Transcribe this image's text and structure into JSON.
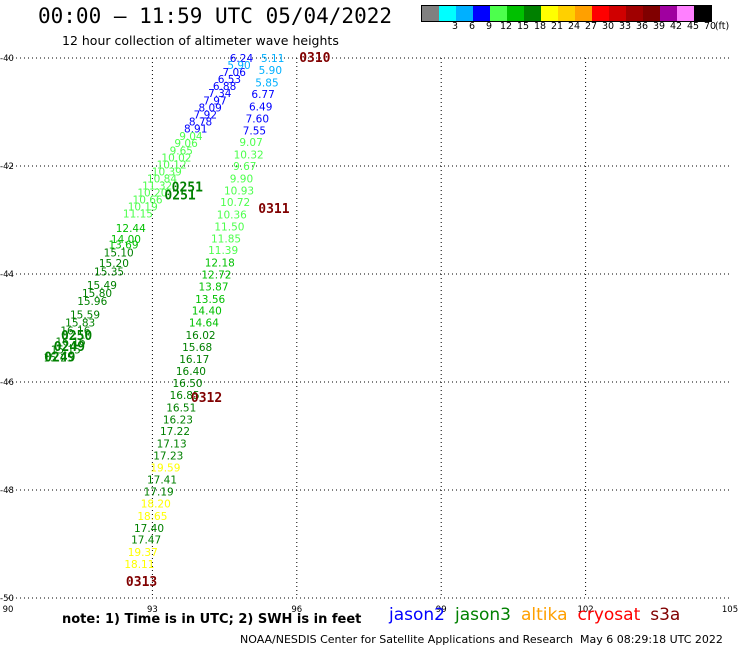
{
  "title": "00:00 – 11:59 UTC 05/04/2022",
  "subtitle": "12 hour collection of altimeter wave heights",
  "legend": {
    "unit": "(ft)",
    "bins": [
      {
        "label": "",
        "color": "#808080"
      },
      {
        "label": "3",
        "color": "#00ffff"
      },
      {
        "label": "6",
        "color": "#00b0ff"
      },
      {
        "label": "9",
        "color": "#0000ff"
      },
      {
        "label": "12",
        "color": "#4dff4d"
      },
      {
        "label": "15",
        "color": "#00c000"
      },
      {
        "label": "18",
        "color": "#008000"
      },
      {
        "label": "21",
        "color": "#ffff00"
      },
      {
        "label": "24",
        "color": "#ffd000"
      },
      {
        "label": "27",
        "color": "#ffa000"
      },
      {
        "label": "30",
        "color": "#ff0000"
      },
      {
        "label": "33",
        "color": "#d00000"
      },
      {
        "label": "36",
        "color": "#a00000"
      },
      {
        "label": "39",
        "color": "#800000"
      },
      {
        "label": "42",
        "color": "#a000a0"
      },
      {
        "label": "45",
        "color": "#ff80ff"
      },
      {
        "label": "70",
        "color": "#000000"
      }
    ]
  },
  "note": "note:  1) Time is in UTC;  2) SWH is in feet",
  "satellites": [
    {
      "name": "jason2",
      "color": "#0000ff"
    },
    {
      "name": "jason3",
      "color": "#008000"
    },
    {
      "name": "altika",
      "color": "#ffa000"
    },
    {
      "name": "cryosat",
      "color": "#ff0000"
    },
    {
      "name": "s3a",
      "color": "#800000"
    }
  ],
  "credit": "NOAA/NESDIS Center for Satellite Applications and Research",
  "generated": "May  6 08:29:18 UTC 2022",
  "chart_data": {
    "type": "scatter",
    "xlim": [
      90,
      105
    ],
    "ylim": [
      -50,
      -40
    ],
    "x_ticks": [
      "90",
      "93",
      "96",
      "99",
      "102",
      "105"
    ],
    "y_ticks": [
      "-40",
      "-42",
      "-44",
      "-46",
      "-48",
      "-50"
    ],
    "x_tick_values": [
      90,
      93,
      96,
      99,
      102,
      105
    ],
    "y_tick_values": [
      -40,
      -42,
      -44,
      -46,
      -48,
      -50
    ],
    "grid": "dotted",
    "pass_labels": [
      {
        "text": "0310",
        "lon": 96.05,
        "lat": -40.0
      },
      {
        "text": "0311",
        "lon": 95.2,
        "lat": -42.8
      },
      {
        "text": "0312",
        "lon": 93.8,
        "lat": -46.3
      },
      {
        "text": "0313",
        "lon": 92.45,
        "lat": -49.7
      },
      {
        "text": "0251",
        "lon": 93.4,
        "lat": -42.4
      },
      {
        "text": "0251",
        "lon": 93.25,
        "lat": -42.55
      },
      {
        "text": "0250",
        "lon": 91.1,
        "lat": -45.15
      },
      {
        "text": "0249",
        "lon": 90.95,
        "lat": -45.35
      },
      {
        "text": "0249",
        "lon": 90.75,
        "lat": -45.55
      }
    ],
    "points": [
      {
        "lon": 95.5,
        "lat": -40.0,
        "v": "5.11"
      },
      {
        "lon": 95.45,
        "lat": -40.22,
        "v": "5.90"
      },
      {
        "lon": 95.38,
        "lat": -40.45,
        "v": "5.85"
      },
      {
        "lon": 95.3,
        "lat": -40.67,
        "v": "6.77"
      },
      {
        "lon": 95.25,
        "lat": -40.9,
        "v": "6.49"
      },
      {
        "lon": 95.18,
        "lat": -41.12,
        "v": "7.60"
      },
      {
        "lon": 95.12,
        "lat": -41.34,
        "v": "7.55"
      },
      {
        "lon": 95.05,
        "lat": -41.56,
        "v": "9.07"
      },
      {
        "lon": 95.0,
        "lat": -41.79,
        "v": "10.32"
      },
      {
        "lon": 94.92,
        "lat": -42.0,
        "v": "9.67"
      },
      {
        "lon": 94.85,
        "lat": -42.23,
        "v": "9.90"
      },
      {
        "lon": 94.8,
        "lat": -42.45,
        "v": "10.93"
      },
      {
        "lon": 94.72,
        "lat": -42.67,
        "v": "10.72"
      },
      {
        "lon": 94.65,
        "lat": -42.9,
        "v": "10.36"
      },
      {
        "lon": 94.6,
        "lat": -43.12,
        "v": "11.50"
      },
      {
        "lon": 94.53,
        "lat": -43.34,
        "v": "11.85"
      },
      {
        "lon": 94.47,
        "lat": -43.56,
        "v": "11.39"
      },
      {
        "lon": 94.4,
        "lat": -43.79,
        "v": "12.18"
      },
      {
        "lon": 94.33,
        "lat": -44.01,
        "v": "12.72"
      },
      {
        "lon": 94.27,
        "lat": -44.23,
        "v": "13.87"
      },
      {
        "lon": 94.2,
        "lat": -44.46,
        "v": "13.56"
      },
      {
        "lon": 94.13,
        "lat": -44.68,
        "v": "14.40"
      },
      {
        "lon": 94.07,
        "lat": -44.9,
        "v": "14.64"
      },
      {
        "lon": 94.0,
        "lat": -45.13,
        "v": "16.02"
      },
      {
        "lon": 93.93,
        "lat": -45.35,
        "v": "15.68"
      },
      {
        "lon": 93.87,
        "lat": -45.57,
        "v": "16.17"
      },
      {
        "lon": 93.8,
        "lat": -45.8,
        "v": "16.40"
      },
      {
        "lon": 93.73,
        "lat": -46.02,
        "v": "16.50"
      },
      {
        "lon": 93.67,
        "lat": -46.24,
        "v": "16.85"
      },
      {
        "lon": 93.6,
        "lat": -46.47,
        "v": "16.51"
      },
      {
        "lon": 93.53,
        "lat": -46.69,
        "v": "16.23"
      },
      {
        "lon": 93.47,
        "lat": -46.91,
        "v": "17.22"
      },
      {
        "lon": 93.4,
        "lat": -47.14,
        "v": "17.13"
      },
      {
        "lon": 93.33,
        "lat": -47.36,
        "v": "17.23"
      },
      {
        "lon": 93.27,
        "lat": -47.58,
        "v": "19.59"
      },
      {
        "lon": 93.2,
        "lat": -47.81,
        "v": "17.41"
      },
      {
        "lon": 93.13,
        "lat": -48.03,
        "v": "17.19"
      },
      {
        "lon": 93.07,
        "lat": -48.25,
        "v": "18.20"
      },
      {
        "lon": 93.0,
        "lat": -48.48,
        "v": "18.65"
      },
      {
        "lon": 92.93,
        "lat": -48.7,
        "v": "17.40"
      },
      {
        "lon": 92.87,
        "lat": -48.92,
        "v": "17.47"
      },
      {
        "lon": 92.8,
        "lat": -49.15,
        "v": "19.37"
      },
      {
        "lon": 92.73,
        "lat": -49.37,
        "v": "18.11"
      },
      {
        "lon": 94.85,
        "lat": -40.0,
        "v": "6.24"
      },
      {
        "lon": 94.8,
        "lat": -40.13,
        "v": "5.90"
      },
      {
        "lon": 94.7,
        "lat": -40.26,
        "v": "7.06"
      },
      {
        "lon": 94.6,
        "lat": -40.39,
        "v": "6.53"
      },
      {
        "lon": 94.5,
        "lat": -40.52,
        "v": "6.88"
      },
      {
        "lon": 94.4,
        "lat": -40.65,
        "v": "7.34"
      },
      {
        "lon": 94.3,
        "lat": -40.79,
        "v": "7.97"
      },
      {
        "lon": 94.2,
        "lat": -40.92,
        "v": "8.09"
      },
      {
        "lon": 94.1,
        "lat": -41.05,
        "v": "7.92"
      },
      {
        "lon": 94.0,
        "lat": -41.18,
        "v": "8.78"
      },
      {
        "lon": 93.9,
        "lat": -41.31,
        "v": "8.91"
      },
      {
        "lon": 93.8,
        "lat": -41.44,
        "v": "9.04"
      },
      {
        "lon": 93.7,
        "lat": -41.57,
        "v": "9.06"
      },
      {
        "lon": 93.6,
        "lat": -41.71,
        "v": "9.65"
      },
      {
        "lon": 93.5,
        "lat": -41.84,
        "v": "10.02"
      },
      {
        "lon": 93.4,
        "lat": -41.97,
        "v": "10.12"
      },
      {
        "lon": 93.3,
        "lat": -42.1,
        "v": "10.39"
      },
      {
        "lon": 93.2,
        "lat": -42.23,
        "v": "10.84"
      },
      {
        "lon": 93.1,
        "lat": -42.36,
        "v": "11.32"
      },
      {
        "lon": 93.0,
        "lat": -42.49,
        "v": "10.20"
      },
      {
        "lon": 92.9,
        "lat": -42.62,
        "v": "10.66"
      },
      {
        "lon": 92.8,
        "lat": -42.75,
        "v": "10.19"
      },
      {
        "lon": 92.7,
        "lat": -42.88,
        "v": "11.15"
      },
      {
        "lon": 92.55,
        "lat": -43.15,
        "v": "12.44"
      },
      {
        "lon": 92.45,
        "lat": -43.35,
        "v": "14.00"
      },
      {
        "lon": 92.4,
        "lat": -43.45,
        "v": "13.69"
      },
      {
        "lon": 92.3,
        "lat": -43.6,
        "v": "15.10"
      },
      {
        "lon": 92.2,
        "lat": -43.8,
        "v": "15.20"
      },
      {
        "lon": 92.1,
        "lat": -43.95,
        "v": "15.35"
      },
      {
        "lon": 91.95,
        "lat": -44.2,
        "v": "15.49"
      },
      {
        "lon": 91.85,
        "lat": -44.35,
        "v": "15.80"
      },
      {
        "lon": 91.75,
        "lat": -44.5,
        "v": "15.96"
      },
      {
        "lon": 91.6,
        "lat": -44.75,
        "v": "15.59"
      },
      {
        "lon": 91.5,
        "lat": -44.9,
        "v": "15.83"
      },
      {
        "lon": 91.4,
        "lat": -45.05,
        "v": "16.16"
      },
      {
        "lon": 91.3,
        "lat": -45.25,
        "v": "16.16"
      },
      {
        "lon": 91.2,
        "lat": -45.4,
        "v": "15.15"
      },
      {
        "lon": 91.05,
        "lat": -45.55,
        "v": "15.25"
      }
    ]
  }
}
